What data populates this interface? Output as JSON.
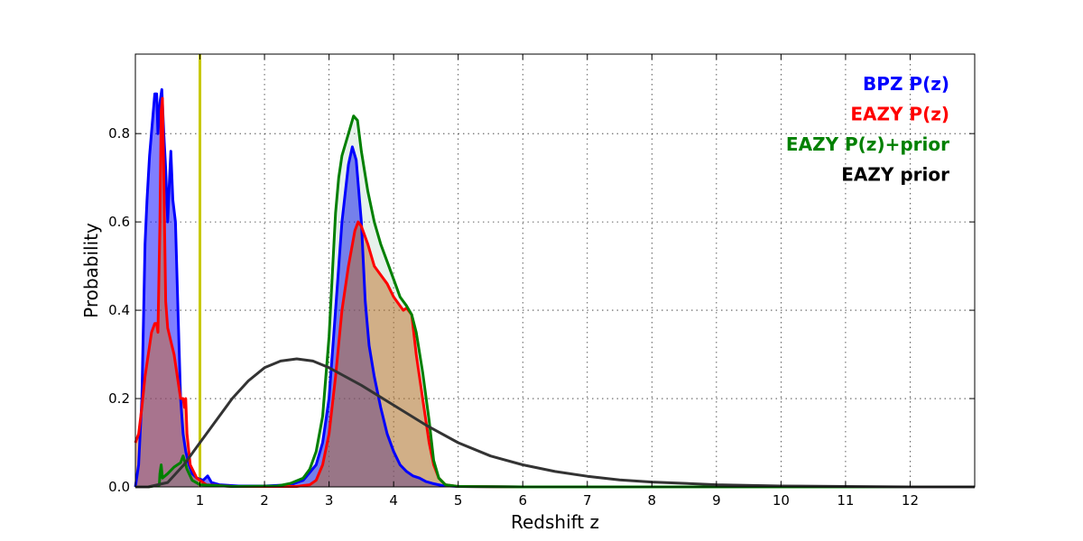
{
  "chart_data": {
    "type": "area",
    "title": "",
    "xlabel": "Redshift z",
    "ylabel": "Probability",
    "xlim": [
      0,
      13
    ],
    "ylim": [
      0,
      0.98
    ],
    "xticks": [
      1,
      2,
      3,
      4,
      5,
      6,
      7,
      8,
      9,
      10,
      11,
      12
    ],
    "yticks": [
      0.0,
      0.2,
      0.4,
      0.6,
      0.8
    ],
    "grid": true,
    "legend_position": "top-right",
    "vline": {
      "x": 1.0,
      "color": "#c8c800"
    },
    "series": [
      {
        "name": "BPZ P(z)",
        "color": "#0000ff",
        "fill": "#0000ff",
        "fill_opacity": 0.5,
        "points": [
          [
            0,
            0
          ],
          [
            0.05,
            0.05
          ],
          [
            0.1,
            0.2
          ],
          [
            0.15,
            0.55
          ],
          [
            0.18,
            0.65
          ],
          [
            0.2,
            0.7
          ],
          [
            0.22,
            0.75
          ],
          [
            0.26,
            0.82
          ],
          [
            0.3,
            0.89
          ],
          [
            0.33,
            0.89
          ],
          [
            0.35,
            0.8
          ],
          [
            0.38,
            0.87
          ],
          [
            0.41,
            0.9
          ],
          [
            0.44,
            0.8
          ],
          [
            0.47,
            0.72
          ],
          [
            0.5,
            0.6
          ],
          [
            0.53,
            0.7
          ],
          [
            0.55,
            0.76
          ],
          [
            0.58,
            0.65
          ],
          [
            0.62,
            0.6
          ],
          [
            0.66,
            0.4
          ],
          [
            0.7,
            0.2
          ],
          [
            0.74,
            0.12
          ],
          [
            0.78,
            0.08
          ],
          [
            0.83,
            0.05
          ],
          [
            0.88,
            0.03
          ],
          [
            0.95,
            0.02
          ],
          [
            1.05,
            0.015
          ],
          [
            1.12,
            0.025
          ],
          [
            1.18,
            0.01
          ],
          [
            1.3,
            0.005
          ],
          [
            1.6,
            0.002
          ],
          [
            2.0,
            0.002
          ],
          [
            2.4,
            0.005
          ],
          [
            2.6,
            0.015
          ],
          [
            2.8,
            0.05
          ],
          [
            2.9,
            0.1
          ],
          [
            3.0,
            0.2
          ],
          [
            3.1,
            0.4
          ],
          [
            3.2,
            0.6
          ],
          [
            3.3,
            0.73
          ],
          [
            3.36,
            0.77
          ],
          [
            3.42,
            0.74
          ],
          [
            3.5,
            0.6
          ],
          [
            3.56,
            0.42
          ],
          [
            3.62,
            0.32
          ],
          [
            3.7,
            0.25
          ],
          [
            3.8,
            0.18
          ],
          [
            3.9,
            0.12
          ],
          [
            4.0,
            0.08
          ],
          [
            4.1,
            0.05
          ],
          [
            4.2,
            0.035
          ],
          [
            4.3,
            0.025
          ],
          [
            4.4,
            0.02
          ],
          [
            4.5,
            0.012
          ],
          [
            4.6,
            0.008
          ],
          [
            4.75,
            0.003
          ],
          [
            5.0,
            0.001
          ],
          [
            6.0,
            0
          ],
          [
            13.0,
            0
          ]
        ]
      },
      {
        "name": "EAZY P(z)",
        "color": "#ff0000",
        "fill": "#d2691e",
        "fill_opacity": 0.5,
        "points": [
          [
            0,
            0.1
          ],
          [
            0.05,
            0.12
          ],
          [
            0.1,
            0.18
          ],
          [
            0.15,
            0.25
          ],
          [
            0.2,
            0.3
          ],
          [
            0.25,
            0.35
          ],
          [
            0.3,
            0.37
          ],
          [
            0.33,
            0.37
          ],
          [
            0.35,
            0.35
          ],
          [
            0.38,
            0.6
          ],
          [
            0.4,
            0.85
          ],
          [
            0.42,
            0.88
          ],
          [
            0.44,
            0.7
          ],
          [
            0.47,
            0.42
          ],
          [
            0.5,
            0.36
          ],
          [
            0.55,
            0.33
          ],
          [
            0.6,
            0.3
          ],
          [
            0.65,
            0.25
          ],
          [
            0.7,
            0.2
          ],
          [
            0.74,
            0.2
          ],
          [
            0.76,
            0.18
          ],
          [
            0.78,
            0.2
          ],
          [
            0.8,
            0.12
          ],
          [
            0.85,
            0.05
          ],
          [
            0.95,
            0.02
          ],
          [
            1.1,
            0.005
          ],
          [
            1.5,
            0.001
          ],
          [
            2.5,
            0.001
          ],
          [
            2.7,
            0.005
          ],
          [
            2.8,
            0.015
          ],
          [
            2.9,
            0.05
          ],
          [
            3.0,
            0.12
          ],
          [
            3.1,
            0.25
          ],
          [
            3.2,
            0.4
          ],
          [
            3.3,
            0.5
          ],
          [
            3.4,
            0.58
          ],
          [
            3.45,
            0.6
          ],
          [
            3.5,
            0.59
          ],
          [
            3.6,
            0.55
          ],
          [
            3.7,
            0.5
          ],
          [
            3.8,
            0.48
          ],
          [
            3.9,
            0.46
          ],
          [
            4.0,
            0.43
          ],
          [
            4.1,
            0.41
          ],
          [
            4.15,
            0.4
          ],
          [
            4.2,
            0.405
          ],
          [
            4.28,
            0.39
          ],
          [
            4.35,
            0.3
          ],
          [
            4.45,
            0.2
          ],
          [
            4.55,
            0.1
          ],
          [
            4.62,
            0.05
          ],
          [
            4.7,
            0.02
          ],
          [
            4.8,
            0.005
          ],
          [
            5.0,
            0.001
          ],
          [
            6.0,
            0
          ],
          [
            13.0,
            0
          ]
        ]
      },
      {
        "name": "EAZY P(z)+prior",
        "color": "#008000",
        "fill": "#2e8b57",
        "fill_opacity": 0.12,
        "points": [
          [
            0,
            0
          ],
          [
            0.2,
            0
          ],
          [
            0.37,
            0.004
          ],
          [
            0.38,
            0.03
          ],
          [
            0.4,
            0.05
          ],
          [
            0.42,
            0.02
          ],
          [
            0.5,
            0.03
          ],
          [
            0.6,
            0.045
          ],
          [
            0.7,
            0.055
          ],
          [
            0.74,
            0.07
          ],
          [
            0.77,
            0.055
          ],
          [
            0.8,
            0.04
          ],
          [
            0.88,
            0.015
          ],
          [
            1.0,
            0.005
          ],
          [
            1.5,
            0.001
          ],
          [
            2.2,
            0.002
          ],
          [
            2.4,
            0.008
          ],
          [
            2.6,
            0.02
          ],
          [
            2.7,
            0.04
          ],
          [
            2.8,
            0.08
          ],
          [
            2.9,
            0.16
          ],
          [
            3.0,
            0.34
          ],
          [
            3.05,
            0.48
          ],
          [
            3.1,
            0.62
          ],
          [
            3.15,
            0.7
          ],
          [
            3.2,
            0.75
          ],
          [
            3.3,
            0.8
          ],
          [
            3.38,
            0.84
          ],
          [
            3.44,
            0.83
          ],
          [
            3.5,
            0.76
          ],
          [
            3.6,
            0.67
          ],
          [
            3.7,
            0.6
          ],
          [
            3.8,
            0.55
          ],
          [
            3.9,
            0.51
          ],
          [
            4.0,
            0.47
          ],
          [
            4.1,
            0.43
          ],
          [
            4.2,
            0.41
          ],
          [
            4.28,
            0.39
          ],
          [
            4.35,
            0.35
          ],
          [
            4.45,
            0.26
          ],
          [
            4.55,
            0.15
          ],
          [
            4.62,
            0.06
          ],
          [
            4.7,
            0.02
          ],
          [
            4.8,
            0.005
          ],
          [
            5.0,
            0.001
          ],
          [
            6.0,
            0
          ],
          [
            13.0,
            0
          ]
        ]
      },
      {
        "name": "EAZY prior",
        "color": "#333333",
        "fill": "none",
        "fill_opacity": 0,
        "points": [
          [
            0,
            0
          ],
          [
            0.2,
            0
          ],
          [
            0.5,
            0.01
          ],
          [
            0.75,
            0.05
          ],
          [
            1.0,
            0.1
          ],
          [
            1.25,
            0.15
          ],
          [
            1.5,
            0.2
          ],
          [
            1.75,
            0.24
          ],
          [
            2.0,
            0.27
          ],
          [
            2.25,
            0.285
          ],
          [
            2.5,
            0.29
          ],
          [
            2.75,
            0.285
          ],
          [
            3.0,
            0.27
          ],
          [
            3.25,
            0.25
          ],
          [
            3.5,
            0.23
          ],
          [
            4.0,
            0.185
          ],
          [
            4.5,
            0.14
          ],
          [
            5.0,
            0.1
          ],
          [
            5.5,
            0.07
          ],
          [
            6.0,
            0.05
          ],
          [
            6.5,
            0.035
          ],
          [
            7.0,
            0.024
          ],
          [
            7.5,
            0.016
          ],
          [
            8.0,
            0.011
          ],
          [
            9.0,
            0.005
          ],
          [
            10.0,
            0.002
          ],
          [
            11.0,
            0.001
          ],
          [
            12.0,
            0
          ],
          [
            13.0,
            0
          ]
        ]
      }
    ]
  }
}
